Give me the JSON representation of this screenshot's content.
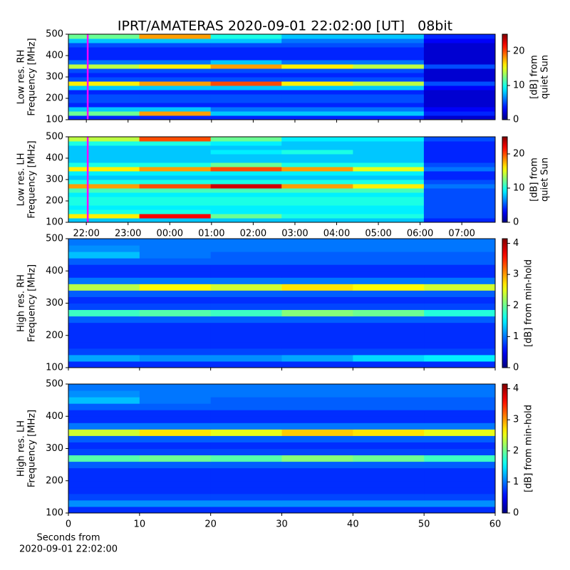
{
  "chart_data": [
    {
      "type": "heatmap",
      "title": "IPRT/AMATERAS 2020-09-01 22:02:00 [UT]   08bit",
      "ylabel": [
        "Low res. RH",
        "Frequency [MHz]"
      ],
      "colorbar_label": [
        "[dB] from",
        "quiet Sun"
      ],
      "colormap": "jet",
      "clim": [
        0,
        25
      ],
      "cbticks": [
        0,
        10,
        20
      ],
      "xlim": [
        21.57,
        31.8
      ],
      "ylim": [
        100,
        500
      ],
      "yticks": [
        100,
        200,
        300,
        400,
        500
      ],
      "cursor_x": 22.033,
      "cursor_color": "#ff00ff",
      "xbins": [
        21.57,
        23.27,
        24.98,
        26.68,
        28.39,
        30.09,
        31.8
      ],
      "ybins": [
        100,
        120,
        140,
        160,
        180,
        200,
        220,
        240,
        260,
        280,
        300,
        320,
        340,
        360,
        380,
        400,
        420,
        440,
        460,
        480,
        500
      ],
      "z": [
        [
          4,
          4,
          4,
          4,
          4,
          2
        ],
        [
          12,
          18,
          8,
          8,
          8,
          4
        ],
        [
          8,
          8,
          6,
          6,
          6,
          3
        ],
        [
          4,
          4,
          4,
          4,
          4,
          2
        ],
        [
          5,
          5,
          5,
          5,
          5,
          2
        ],
        [
          5,
          5,
          5,
          5,
          5,
          2
        ],
        [
          4,
          4,
          4,
          4,
          4,
          2
        ],
        [
          8,
          8,
          8,
          8,
          8,
          3
        ],
        [
          16,
          18,
          20,
          16,
          14,
          5
        ],
        [
          5,
          5,
          5,
          5,
          5,
          2
        ],
        [
          4,
          4,
          4,
          4,
          4,
          2
        ],
        [
          5,
          5,
          5,
          5,
          5,
          2
        ],
        [
          14,
          16,
          18,
          16,
          14,
          5
        ],
        [
          6,
          6,
          8,
          6,
          6,
          2
        ],
        [
          4,
          4,
          4,
          4,
          4,
          2
        ],
        [
          4,
          4,
          4,
          4,
          4,
          2
        ],
        [
          4,
          4,
          4,
          4,
          4,
          2
        ],
        [
          5,
          5,
          5,
          5,
          5,
          2
        ],
        [
          8,
          8,
          8,
          6,
          6,
          3
        ],
        [
          12,
          18,
          10,
          8,
          8,
          4
        ]
      ]
    },
    {
      "type": "heatmap",
      "ylabel": [
        "Low res. LH",
        "Frequency [MHz]"
      ],
      "colorbar_label": [
        "[dB] from",
        "quiet Sun"
      ],
      "colormap": "jet",
      "clim": [
        0,
        25
      ],
      "cbticks": [
        0,
        10,
        20
      ],
      "xlim": [
        21.57,
        31.8
      ],
      "ylim": [
        100,
        500
      ],
      "yticks": [
        100,
        200,
        300,
        400,
        500
      ],
      "xticks": [
        {
          "value": 22,
          "label": "22:00"
        },
        {
          "value": 23,
          "label": "23:00"
        },
        {
          "value": 24,
          "label": "00:00"
        },
        {
          "value": 25,
          "label": "01:00"
        },
        {
          "value": 26,
          "label": "02:00"
        },
        {
          "value": 27,
          "label": "03:00"
        },
        {
          "value": 28,
          "label": "04:00"
        },
        {
          "value": 29,
          "label": "05:00"
        },
        {
          "value": 30,
          "label": "06:00"
        },
        {
          "value": 31,
          "label": "07:00"
        }
      ],
      "cursor_x": 22.033,
      "cursor_color": "#ff00ff",
      "xbins": [
        21.57,
        23.27,
        24.98,
        26.68,
        28.39,
        30.09,
        31.8
      ],
      "ybins": [
        100,
        120,
        140,
        160,
        180,
        200,
        220,
        240,
        260,
        280,
        300,
        320,
        340,
        360,
        380,
        400,
        420,
        440,
        460,
        480,
        500
      ],
      "z": [
        [
          8,
          8,
          8,
          8,
          8,
          4
        ],
        [
          16,
          22,
          12,
          10,
          10,
          5
        ],
        [
          10,
          10,
          9,
          9,
          9,
          5
        ],
        [
          9,
          9,
          9,
          9,
          9,
          5
        ],
        [
          10,
          10,
          10,
          10,
          10,
          5
        ],
        [
          10,
          10,
          10,
          10,
          10,
          5
        ],
        [
          9,
          9,
          9,
          9,
          9,
          5
        ],
        [
          11,
          11,
          11,
          11,
          11,
          5
        ],
        [
          18,
          20,
          23,
          18,
          16,
          6
        ],
        [
          10,
          10,
          10,
          10,
          10,
          5
        ],
        [
          8,
          8,
          8,
          8,
          8,
          4
        ],
        [
          9,
          9,
          9,
          9,
          9,
          4
        ],
        [
          16,
          18,
          20,
          18,
          15,
          6
        ],
        [
          10,
          10,
          12,
          10,
          10,
          5
        ],
        [
          8,
          8,
          8,
          8,
          8,
          4
        ],
        [
          8,
          8,
          8,
          8,
          8,
          4
        ],
        [
          8,
          8,
          9,
          10,
          8,
          4
        ],
        [
          8,
          8,
          8,
          8,
          8,
          4
        ],
        [
          10,
          10,
          9,
          8,
          8,
          4
        ],
        [
          14,
          20,
          12,
          9,
          9,
          5
        ]
      ]
    },
    {
      "type": "heatmap",
      "ylabel": [
        "High res. RH",
        "Frequency [MHz]"
      ],
      "colorbar_label": [
        "[dB] from min-hold"
      ],
      "colormap": "jet",
      "clim": [
        0,
        4.15
      ],
      "cbticks": [
        0,
        1,
        2,
        3,
        4
      ],
      "xlim": [
        0,
        60
      ],
      "ylim": [
        100,
        500
      ],
      "yticks": [
        100,
        200,
        300,
        400,
        500
      ],
      "xbins": [
        0,
        10,
        20,
        30,
        40,
        50,
        60
      ],
      "ybins": [
        100,
        120,
        140,
        160,
        180,
        200,
        220,
        240,
        260,
        280,
        300,
        320,
        340,
        360,
        380,
        400,
        420,
        440,
        460,
        480,
        500
      ],
      "z": [
        [
          0.7,
          0.7,
          0.7,
          0.7,
          0.7,
          0.7
        ],
        [
          1.2,
          1.1,
          1.1,
          1.2,
          1.4,
          1.5
        ],
        [
          0.8,
          0.8,
          0.8,
          0.8,
          0.8,
          0.8
        ],
        [
          0.7,
          0.7,
          0.7,
          0.7,
          0.7,
          0.7
        ],
        [
          0.7,
          0.7,
          0.7,
          0.7,
          0.7,
          0.7
        ],
        [
          0.7,
          0.7,
          0.7,
          0.7,
          0.7,
          0.7
        ],
        [
          0.7,
          0.7,
          0.7,
          0.7,
          0.7,
          0.7
        ],
        [
          0.9,
          0.9,
          0.9,
          0.9,
          0.9,
          0.9
        ],
        [
          1.8,
          1.9,
          1.8,
          2.1,
          2.0,
          1.7
        ],
        [
          0.8,
          0.8,
          0.8,
          0.8,
          0.8,
          0.8
        ],
        [
          0.7,
          0.7,
          0.7,
          0.7,
          0.7,
          0.7
        ],
        [
          0.9,
          0.9,
          0.9,
          0.9,
          0.9,
          0.9
        ],
        [
          2.3,
          2.6,
          2.4,
          2.7,
          2.6,
          2.4
        ],
        [
          1.0,
          1.0,
          1.0,
          1.0,
          1.0,
          1.0
        ],
        [
          0.7,
          0.7,
          0.7,
          0.7,
          0.7,
          0.7
        ],
        [
          0.7,
          0.7,
          0.7,
          0.7,
          0.7,
          0.7
        ],
        [
          0.9,
          0.9,
          0.9,
          0.9,
          0.9,
          0.9
        ],
        [
          1.3,
          1.0,
          0.9,
          0.9,
          0.9,
          0.9
        ],
        [
          1.1,
          1.0,
          1.0,
          1.0,
          1.0,
          1.0
        ],
        [
          1.0,
          1.0,
          1.0,
          1.0,
          1.0,
          1.0
        ]
      ]
    },
    {
      "type": "heatmap",
      "ylabel": [
        "High res. LH",
        "Frequency [MHz]"
      ],
      "colorbar_label": [
        "[dB] from min-hold"
      ],
      "colormap": "jet",
      "clim": [
        0,
        4.15
      ],
      "cbticks": [
        0,
        1,
        2,
        3,
        4
      ],
      "xlim": [
        0,
        60
      ],
      "ylim": [
        100,
        500
      ],
      "yticks": [
        100,
        200,
        300,
        400,
        500
      ],
      "xticks": [
        0,
        10,
        20,
        30,
        40,
        50,
        60
      ],
      "xlabel": [
        "Seconds from",
        "2020-09-01 22:02:00"
      ],
      "xbins": [
        0,
        10,
        20,
        30,
        40,
        50,
        60
      ],
      "ybins": [
        100,
        120,
        140,
        160,
        180,
        200,
        220,
        240,
        260,
        280,
        300,
        320,
        340,
        360,
        380,
        400,
        420,
        440,
        460,
        480,
        500
      ],
      "z": [
        [
          0.7,
          0.7,
          0.7,
          0.7,
          0.7,
          0.7
        ],
        [
          1.1,
          1.1,
          1.1,
          1.1,
          1.1,
          1.1
        ],
        [
          0.8,
          0.8,
          0.8,
          0.8,
          0.8,
          0.8
        ],
        [
          0.7,
          0.7,
          0.7,
          0.7,
          0.7,
          0.7
        ],
        [
          0.7,
          0.7,
          0.7,
          0.7,
          0.7,
          0.7
        ],
        [
          0.7,
          0.7,
          0.7,
          0.7,
          0.7,
          0.7
        ],
        [
          0.7,
          0.7,
          0.7,
          0.7,
          0.7,
          0.7
        ],
        [
          0.9,
          0.9,
          0.9,
          0.9,
          0.9,
          0.9
        ],
        [
          1.9,
          2.0,
          1.9,
          2.1,
          2.0,
          1.8
        ],
        [
          0.8,
          0.8,
          0.8,
          0.8,
          0.8,
          0.8
        ],
        [
          0.7,
          0.7,
          0.7,
          0.7,
          0.7,
          0.7
        ],
        [
          0.9,
          0.9,
          0.9,
          0.9,
          0.9,
          0.9
        ],
        [
          2.4,
          2.7,
          2.5,
          2.8,
          2.7,
          2.5
        ],
        [
          1.0,
          1.0,
          1.0,
          1.0,
          1.0,
          1.0
        ],
        [
          0.7,
          0.7,
          0.7,
          0.7,
          0.7,
          0.7
        ],
        [
          0.7,
          0.7,
          0.7,
          0.7,
          0.7,
          0.7
        ],
        [
          0.9,
          0.9,
          0.9,
          0.9,
          0.9,
          0.9
        ],
        [
          1.3,
          1.0,
          0.9,
          0.9,
          0.9,
          0.9
        ],
        [
          1.1,
          1.0,
          1.0,
          1.0,
          1.0,
          1.0
        ],
        [
          1.0,
          1.0,
          1.0,
          1.0,
          1.0,
          1.0
        ]
      ]
    }
  ]
}
